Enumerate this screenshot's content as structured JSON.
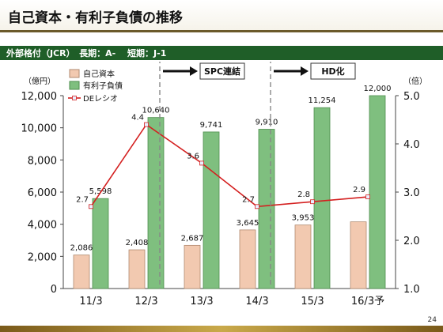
{
  "header": {
    "title": "自己資本・有利子負債の推移"
  },
  "rating": {
    "text": "外部格付（JCR）　長期：A-　 短期：J-1"
  },
  "page": {
    "number": "24"
  },
  "annotations": {
    "spc": "SPC連結",
    "hd": "HD化"
  },
  "colors": {
    "equity": "#f2c9b0",
    "debt": "#7fbf7f",
    "de_line": "#d42020"
  },
  "chart_data": {
    "type": "bar",
    "categories": [
      "11/3",
      "12/3",
      "13/3",
      "14/3",
      "15/3",
      "16/3予"
    ],
    "series": [
      {
        "name": "自己資本",
        "values": [
          2086,
          2408,
          2687,
          3645,
          3953,
          4150
        ],
        "labels": [
          "2,086",
          "2,408",
          "2,687",
          "3,645",
          "3,953",
          ""
        ]
      },
      {
        "name": "有利子負債",
        "values": [
          5598,
          10640,
          9741,
          9910,
          11254,
          12000
        ],
        "labels": [
          "5,598",
          "10,640",
          "9,741",
          "9,910",
          "11,254",
          "12,000"
        ]
      },
      {
        "name": "DEレシオ",
        "type": "line",
        "axis": "right",
        "values": [
          2.7,
          4.4,
          3.6,
          2.7,
          2.8,
          2.9
        ]
      }
    ],
    "ylabel": "（億円）",
    "ylim": [
      0,
      12000
    ],
    "yticks": [
      "0",
      "2,000",
      "4,000",
      "6,000",
      "8,000",
      "10,000",
      "12,000"
    ],
    "y2label": "（倍）",
    "y2lim": [
      1.0,
      5.0
    ],
    "y2ticks": [
      "1.0",
      "2.0",
      "3.0",
      "4.0",
      "5.0"
    ],
    "legend": "top-left"
  }
}
